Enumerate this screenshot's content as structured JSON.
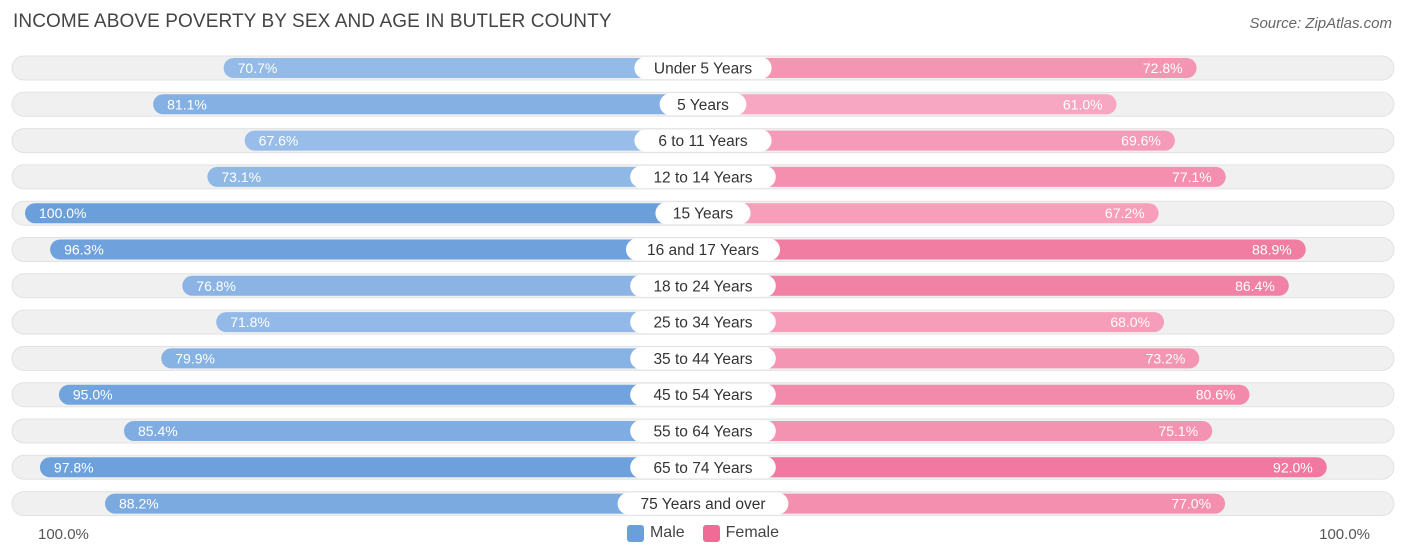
{
  "title": "INCOME ABOVE POVERTY BY SEX AND AGE IN BUTLER COUNTY",
  "source": "Source: ZipAtlas.com",
  "colors": {
    "male": "#6a9fdb",
    "male_light": "#a3c4ec",
    "female": "#f06c97",
    "female_light": "#f7a9c2",
    "row_bg": "#f0f0f0"
  },
  "legend": {
    "male_label": "Male",
    "female_label": "Female"
  },
  "axis": {
    "left_label": "100.0%",
    "right_label": "100.0%"
  },
  "chart_data": {
    "type": "bar",
    "orientation": "diverging-horizontal",
    "title": "INCOME ABOVE POVERTY BY SEX AND AGE IN BUTLER COUNTY",
    "categories": [
      "Under 5 Years",
      "5 Years",
      "6 to 11 Years",
      "12 to 14 Years",
      "15 Years",
      "16 and 17 Years",
      "18 to 24 Years",
      "25 to 34 Years",
      "35 to 44 Years",
      "45 to 54 Years",
      "55 to 64 Years",
      "65 to 74 Years",
      "75 Years and over"
    ],
    "series": [
      {
        "name": "Male",
        "values": [
          70.7,
          81.1,
          67.6,
          73.1,
          100.0,
          96.3,
          76.8,
          71.8,
          79.9,
          95.0,
          85.4,
          97.8,
          88.2
        ]
      },
      {
        "name": "Female",
        "values": [
          72.8,
          61.0,
          69.6,
          77.1,
          67.2,
          88.9,
          86.4,
          68.0,
          73.2,
          80.6,
          75.1,
          92.0,
          77.0
        ]
      }
    ],
    "value_labels": {
      "male": [
        "70.7%",
        "81.1%",
        "67.6%",
        "73.1%",
        "100.0%",
        "96.3%",
        "76.8%",
        "71.8%",
        "79.9%",
        "95.0%",
        "85.4%",
        "97.8%",
        "88.2%"
      ],
      "female": [
        "72.8%",
        "61.0%",
        "69.6%",
        "77.1%",
        "67.2%",
        "88.9%",
        "86.4%",
        "68.0%",
        "73.2%",
        "80.6%",
        "75.1%",
        "92.0%",
        "77.0%"
      ]
    },
    "xlim": [
      0,
      100
    ],
    "legend_position": "bottom-center"
  }
}
